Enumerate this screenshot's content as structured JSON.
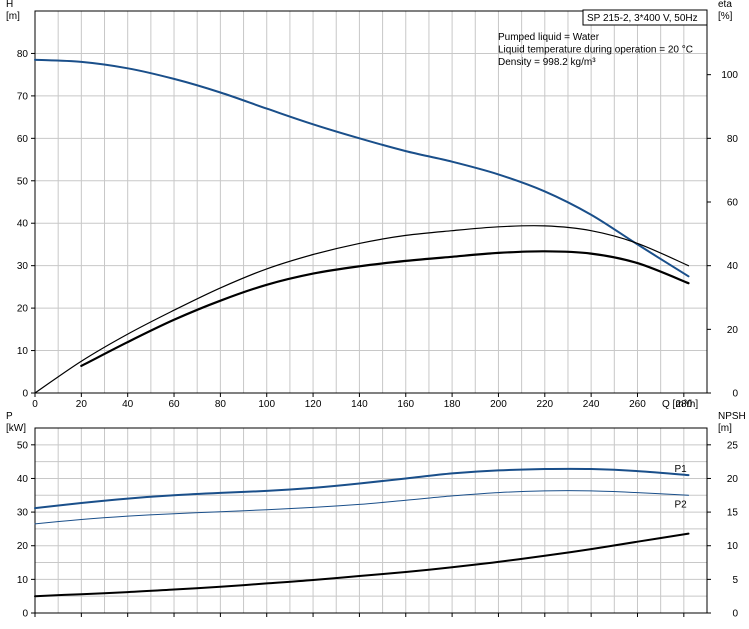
{
  "chart_data": [
    {
      "type": "line",
      "y_left_label": [
        "H",
        "[m]"
      ],
      "y_right_label": [
        "eta",
        "[%]"
      ],
      "x_label": "Q [m³/h]",
      "info_box": "SP 215-2, 3*400 V, 50Hz",
      "info_lines": [
        "Pumped liquid = Water",
        "Liquid temperature during operation = 20 °C",
        "Density = 998.2 kg/m³"
      ],
      "xlim": [
        0,
        290
      ],
      "ylim_left": [
        0,
        90
      ],
      "ylim_right": [
        0,
        120
      ],
      "x_ticks": [
        "0",
        "20",
        "40",
        "60",
        "80",
        "100",
        "120",
        "140",
        "160",
        "180",
        "200",
        "220",
        "240",
        "260",
        "280"
      ],
      "y_left_ticks": [
        "0",
        "10",
        "20",
        "30",
        "40",
        "50",
        "60",
        "70",
        "80"
      ],
      "y_right_ticks": [
        "0",
        "20",
        "40",
        "60",
        "80",
        "100"
      ],
      "series": [
        {
          "axis": "left",
          "color": "#1a4f8a",
          "width": 2,
          "x": [
            0,
            20,
            40,
            60,
            80,
            100,
            120,
            140,
            160,
            180,
            200,
            220,
            240,
            260,
            282
          ],
          "values": [
            78.5,
            78,
            76.5,
            74,
            70.8,
            67,
            63.3,
            60,
            57,
            54.5,
            51.5,
            47.5,
            42,
            35,
            27.5
          ]
        },
        {
          "axis": "right",
          "color": "#000000",
          "width": 1.2,
          "x": [
            0,
            20,
            40,
            60,
            80,
            100,
            120,
            140,
            160,
            180,
            200,
            220,
            240,
            260,
            282
          ],
          "values": [
            0,
            10,
            18.5,
            26,
            33,
            39,
            43.5,
            47,
            49.5,
            51,
            52.2,
            52.5,
            51,
            47,
            40
          ]
        },
        {
          "axis": "right",
          "color": "#000000",
          "width": 2.2,
          "x": [
            20,
            40,
            60,
            80,
            100,
            120,
            140,
            160,
            180,
            200,
            220,
            240,
            260,
            282
          ],
          "values": [
            8.5,
            16,
            23,
            29,
            34,
            37.5,
            39.8,
            41.5,
            42.8,
            44,
            44.5,
            43.8,
            40.8,
            34.5
          ]
        }
      ]
    },
    {
      "type": "line",
      "y_left_label": [
        "P",
        "[kW]"
      ],
      "y_right_label": [
        "NPSH",
        "[m]"
      ],
      "xlim": [
        0,
        290
      ],
      "ylim_left": [
        0,
        55
      ],
      "ylim_right": [
        0,
        27.5
      ],
      "y_left_ticks": [
        "0",
        "10",
        "20",
        "30",
        "40",
        "50"
      ],
      "y_right_ticks": [
        "0",
        "5",
        "10",
        "15",
        "20",
        "25"
      ],
      "series": [
        {
          "name": "P1",
          "axis": "left",
          "color": "#1a4f8a",
          "width": 2,
          "x": [
            0,
            20,
            40,
            60,
            80,
            100,
            120,
            140,
            160,
            180,
            200,
            220,
            240,
            260,
            282
          ],
          "values": [
            31.2,
            32.7,
            34,
            35,
            35.7,
            36.3,
            37.2,
            38.5,
            40,
            41.5,
            42.4,
            42.8,
            42.8,
            42.2,
            41
          ]
        },
        {
          "name": "P2",
          "axis": "left",
          "color": "#1a4f8a",
          "width": 1,
          "x": [
            0,
            20,
            40,
            60,
            80,
            100,
            120,
            140,
            160,
            180,
            200,
            220,
            240,
            260,
            282
          ],
          "values": [
            26.5,
            27.8,
            28.8,
            29.5,
            30.1,
            30.7,
            31.4,
            32.3,
            33.5,
            34.8,
            35.8,
            36.3,
            36.3,
            35.8,
            35
          ]
        },
        {
          "axis": "right",
          "color": "#000000",
          "width": 2,
          "x": [
            0,
            20,
            40,
            60,
            80,
            100,
            120,
            140,
            160,
            180,
            200,
            220,
            240,
            260,
            282
          ],
          "values": [
            2.5,
            2.8,
            3.1,
            3.5,
            3.9,
            4.4,
            4.9,
            5.5,
            6.1,
            6.8,
            7.6,
            8.5,
            9.5,
            10.6,
            11.8
          ]
        }
      ]
    }
  ]
}
